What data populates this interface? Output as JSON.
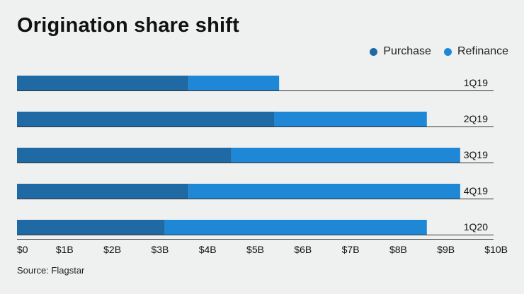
{
  "colors": {
    "purchase": "#1f6aa5",
    "refinance": "#1e88d6",
    "axis": "#333333",
    "text": "#111111"
  },
  "source": "Source: Flagstar",
  "chart_data": {
    "type": "bar",
    "orientation": "horizontal",
    "stacked": true,
    "title": "Origination share shift",
    "categories": [
      "1Q19",
      "2Q19",
      "3Q19",
      "4Q19",
      "1Q20"
    ],
    "series": [
      {
        "name": "Purchase",
        "values": [
          3.6,
          5.4,
          4.5,
          3.6,
          3.1
        ]
      },
      {
        "name": "Refinance",
        "values": [
          1.9,
          3.2,
          4.8,
          5.7,
          5.5
        ]
      }
    ],
    "xlim": [
      0,
      10
    ],
    "xticks": [
      0,
      1,
      2,
      3,
      4,
      5,
      6,
      7,
      8,
      9,
      10
    ],
    "xtick_labels": [
      "$0",
      "$1B",
      "$2B",
      "$3B",
      "$4B",
      "$5B",
      "$6B",
      "$7B",
      "$8B",
      "$9B",
      "$10B"
    ],
    "xlabel": "",
    "ylabel": "",
    "legend_position": "top-right",
    "grid": false
  }
}
